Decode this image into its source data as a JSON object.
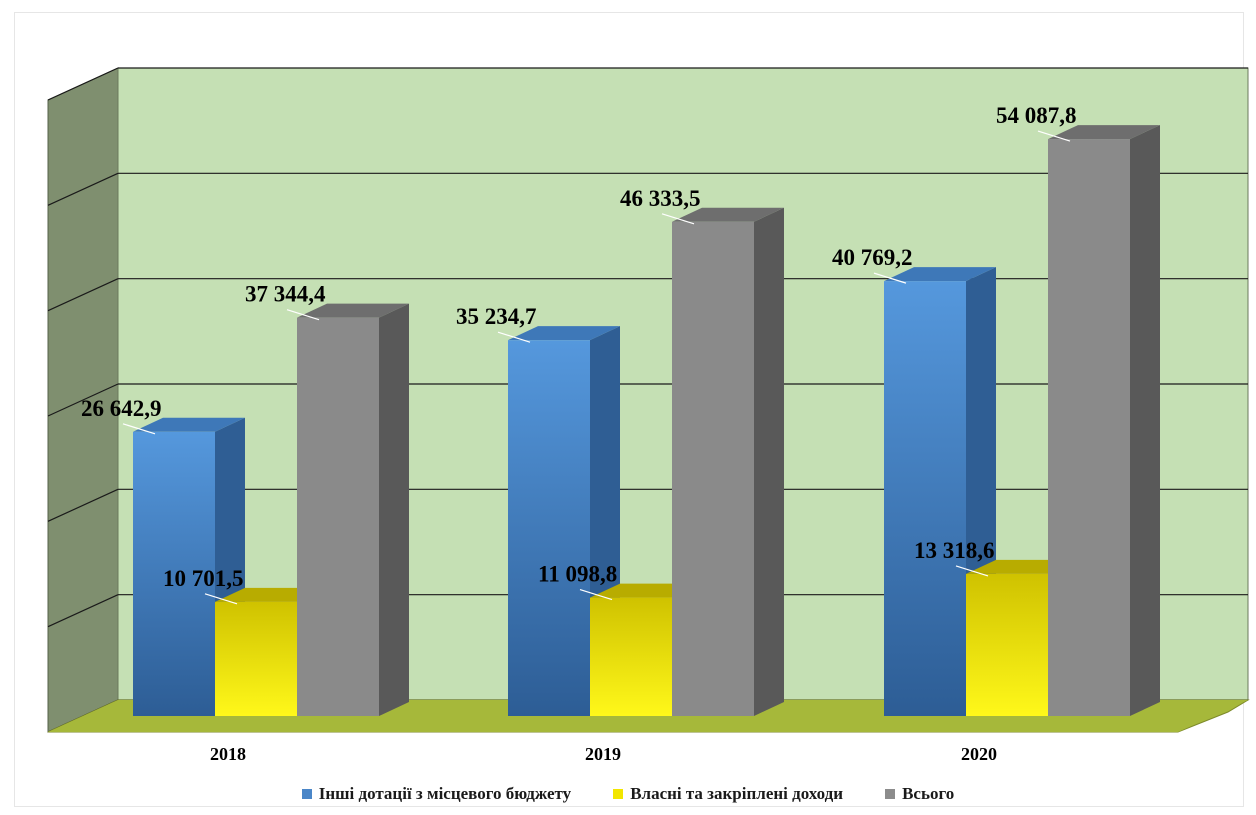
{
  "chart_data": {
    "type": "bar",
    "title": "",
    "xlabel": "",
    "ylabel": "",
    "categories": [
      "2018",
      "2019",
      "2020"
    ],
    "series": [
      {
        "name": "Інші дотації з місцевого бюджету",
        "values": [
          26642.9,
          35234.7,
          40769.2
        ],
        "labels": [
          "26 642,9",
          "35 234,7",
          "40 769,2"
        ],
        "color": "#4a86c8"
      },
      {
        "name": "Власні та закріплені доходи",
        "values": [
          10701.5,
          11098.8,
          13318.6
        ],
        "labels": [
          "10 701,5",
          "11 098,8",
          "13 318,6"
        ],
        "color": "#f2e600"
      },
      {
        "name": "Всього",
        "values": [
          37344.4,
          46333.5,
          54087.8
        ],
        "labels": [
          "37 344,4",
          "46 333,5",
          "54 087,8"
        ],
        "color": "#8c8c8c"
      }
    ],
    "ylim": [
      0,
      60000
    ],
    "grid": true,
    "style": "3d-column",
    "legend_position": "bottom",
    "colors": {
      "back_wall": "#c5e0b4",
      "side_wall": "#7f8f6f",
      "floor": "#a6b83a"
    }
  }
}
